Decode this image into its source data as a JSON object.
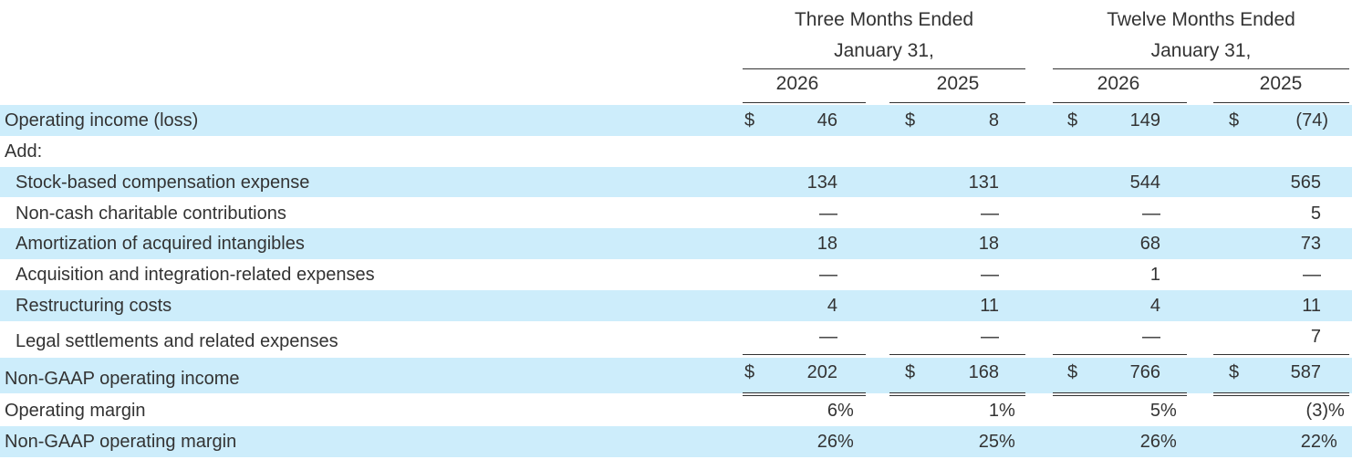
{
  "header": {
    "group1_line1": "Three Months Ended",
    "group1_line2": "January 31,",
    "group2_line1": "Twelve Months Ended",
    "group2_line2": "January 31,",
    "years": [
      "2026",
      "2025",
      "2026",
      "2025"
    ]
  },
  "currency_symbol": "$",
  "rows": [
    {
      "label": "Operating income (loss)",
      "values": [
        "46",
        "8",
        "149",
        "(74)"
      ]
    },
    {
      "label": "Add:",
      "values": [
        "",
        "",
        "",
        ""
      ]
    },
    {
      "label": "Stock-based compensation expense",
      "values": [
        "134",
        "131",
        "544",
        "565"
      ]
    },
    {
      "label": "Non-cash charitable contributions",
      "values": [
        "—",
        "—",
        "—",
        "5"
      ]
    },
    {
      "label": "Amortization of acquired intangibles",
      "values": [
        "18",
        "18",
        "68",
        "73"
      ]
    },
    {
      "label": "Acquisition and integration-related expenses",
      "values": [
        "—",
        "—",
        "1",
        "—"
      ]
    },
    {
      "label": "Restructuring costs",
      "values": [
        "4",
        "11",
        "4",
        "11"
      ]
    },
    {
      "label": "Legal settlements and related expenses",
      "values": [
        "—",
        "—",
        "—",
        "7"
      ]
    },
    {
      "label": "Non-GAAP operating income",
      "values": [
        "202",
        "168",
        "766",
        "587"
      ]
    },
    {
      "label": "Operating margin",
      "values": [
        "6",
        "1",
        "5",
        "(3)"
      ]
    },
    {
      "label": "Non-GAAP operating margin",
      "values": [
        "26",
        "25",
        "26",
        "22"
      ]
    }
  ],
  "percent_sign": "%"
}
